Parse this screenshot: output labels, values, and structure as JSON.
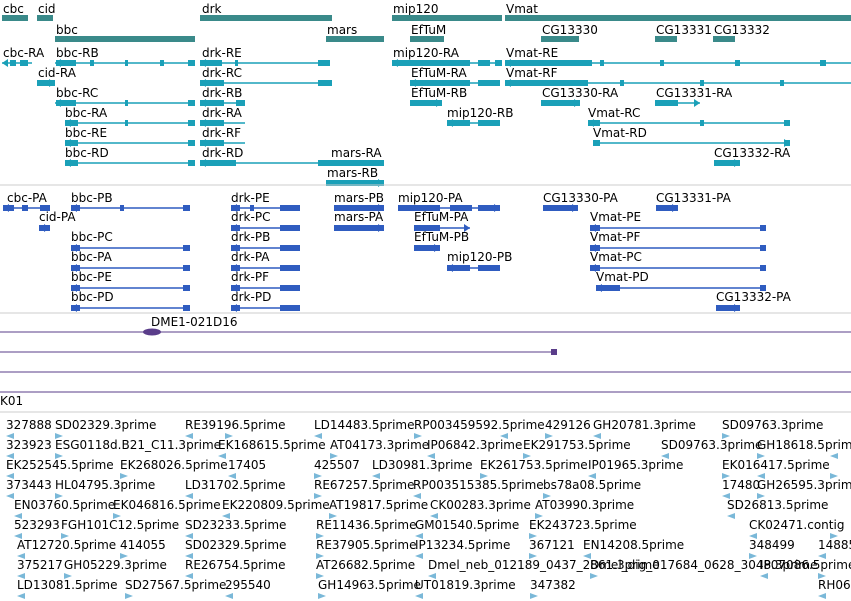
{
  "colors": {
    "gene": "#3a8a8a",
    "transcript": "#1aa0b8",
    "protein": "#2f5cc0",
    "clone": "#5a3d8a",
    "est": "#7ab8d8",
    "divider": "#cccccc"
  },
  "tracks": {
    "genes": [
      {
        "id": "cbc",
        "label": "cbc"
      },
      {
        "id": "cid",
        "label": "cid"
      },
      {
        "id": "bbc",
        "label": "bbc"
      },
      {
        "id": "drk",
        "label": "drk"
      },
      {
        "id": "mars",
        "label": "mars"
      },
      {
        "id": "mip120",
        "label": "mip120"
      },
      {
        "id": "vmat",
        "label": "Vmat"
      },
      {
        "id": "eftum",
        "label": "EfTuM"
      },
      {
        "id": "cg13330",
        "label": "CG13330"
      },
      {
        "id": "cg13331",
        "label": "CG13331"
      },
      {
        "id": "cg13332",
        "label": "CG13332"
      }
    ],
    "transcripts": [
      {
        "id": "cbc-ra",
        "label": "cbc-RA"
      },
      {
        "id": "bbc-rb",
        "label": "bbc-RB"
      },
      {
        "id": "drk-re",
        "label": "drk-RE"
      },
      {
        "id": "mip120-ra",
        "label": "mip120-RA"
      },
      {
        "id": "vmat-re",
        "label": "Vmat-RE"
      },
      {
        "id": "cid-ra",
        "label": "cid-RA"
      },
      {
        "id": "drk-rc",
        "label": "drk-RC"
      },
      {
        "id": "eftum-ra",
        "label": "EfTuM-RA"
      },
      {
        "id": "vmat-rf",
        "label": "Vmat-RF"
      },
      {
        "id": "bbc-rc",
        "label": "bbc-RC"
      },
      {
        "id": "drk-rb",
        "label": "drk-RB"
      },
      {
        "id": "eftum-rb",
        "label": "EfTuM-RB"
      },
      {
        "id": "cg13330-ra",
        "label": "CG13330-RA"
      },
      {
        "id": "cg13331-ra",
        "label": "CG13331-RA"
      },
      {
        "id": "bbc-ra",
        "label": "bbc-RA"
      },
      {
        "id": "drk-ra",
        "label": "drk-RA"
      },
      {
        "id": "mip120-rb",
        "label": "mip120-RB"
      },
      {
        "id": "vmat-rc",
        "label": "Vmat-RC"
      },
      {
        "id": "bbc-re",
        "label": "bbc-RE"
      },
      {
        "id": "drk-rf",
        "label": "drk-RF"
      },
      {
        "id": "vmat-rd",
        "label": "Vmat-RD"
      },
      {
        "id": "bbc-rd",
        "label": "bbc-RD"
      },
      {
        "id": "drk-rd",
        "label": "drk-RD"
      },
      {
        "id": "mars-ra",
        "label": "mars-RA"
      },
      {
        "id": "cg13332-ra",
        "label": "CG13332-RA"
      },
      {
        "id": "mars-rb",
        "label": "mars-RB"
      }
    ],
    "proteins": [
      {
        "id": "cbc-pa",
        "label": "cbc-PA"
      },
      {
        "id": "bbc-pb",
        "label": "bbc-PB"
      },
      {
        "id": "drk-pe",
        "label": "drk-PE"
      },
      {
        "id": "mars-pb",
        "label": "mars-PB"
      },
      {
        "id": "mip120-pa",
        "label": "mip120-PA"
      },
      {
        "id": "cg13330-pa",
        "label": "CG13330-PA"
      },
      {
        "id": "cg13331-pa",
        "label": "CG13331-PA"
      },
      {
        "id": "cid-pa",
        "label": "cid-PA"
      },
      {
        "id": "drk-pc",
        "label": "drk-PC"
      },
      {
        "id": "mars-pa",
        "label": "mars-PA"
      },
      {
        "id": "eftum-pa",
        "label": "EfTuM-PA"
      },
      {
        "id": "vmat-pe",
        "label": "Vmat-PE"
      },
      {
        "id": "bbc-pc",
        "label": "bbc-PC"
      },
      {
        "id": "drk-pb",
        "label": "drk-PB"
      },
      {
        "id": "eftum-pb",
        "label": "EfTuM-PB"
      },
      {
        "id": "vmat-pf",
        "label": "Vmat-PF"
      },
      {
        "id": "bbc-pa",
        "label": "bbc-PA"
      },
      {
        "id": "drk-pa",
        "label": "drk-PA"
      },
      {
        "id": "mip120-pb",
        "label": "mip120-PB"
      },
      {
        "id": "vmat-pc",
        "label": "Vmat-PC"
      },
      {
        "id": "bbc-pe",
        "label": "bbc-PE"
      },
      {
        "id": "drk-pf",
        "label": "drk-PF"
      },
      {
        "id": "vmat-pd",
        "label": "Vmat-PD"
      },
      {
        "id": "bbc-pd",
        "label": "bbc-PD"
      },
      {
        "id": "drk-pd",
        "label": "drk-PD"
      },
      {
        "id": "cg13332-pa",
        "label": "CG13332-PA"
      }
    ],
    "clone": {
      "label": "DME1-021D16"
    },
    "track_label": "K01",
    "ests": [
      "327888",
      "SD02329.3prime",
      "RE39196.5prime",
      "LD14483.5prime",
      "RP003459592.5prime",
      "429126",
      "GH20781.3prime",
      "SD09763.3prime",
      "323923",
      "ESG0118d.B21_C11.3prime",
      "EK168615.5prime",
      "AT04173.3prime",
      "IP06842.3prime",
      "EK291753.5prime",
      "SD09763.3prime",
      "GH18618.5prime",
      "EK252545.5prime",
      "EK268026.5prime",
      "17405",
      "425507",
      "LD30981.3prime",
      "EK261753.5prime",
      "IP01965.3prime",
      "EK016417.5prime",
      "373443",
      "HL04795.3prime",
      "LD31702.5prime",
      "RE67257.5prime",
      "RP003515385.5prime",
      "bs78a08.5prime",
      "17480",
      "GH26595.3prime",
      "EN03760.5prime",
      "EK046816.5prime",
      "EK220809.5prime",
      "AT19817.5prime",
      "CK00283.3prime",
      "AT03990.3prime",
      "SD26813.5prime",
      "523293",
      "FGH101C12.5prime",
      "SD23233.5prime",
      "RE11436.5prime",
      "GM01540.5prime",
      "EK243723.5prime",
      "CK02471.contig",
      "AT12720.5prime",
      "414055",
      "SD02329.5prime",
      "RE37905.5prime",
      "IP13234.5prime",
      "367121",
      "EN14208.5prime",
      "348499",
      "14885",
      "375217",
      "GH05229.3prime",
      "RE26754.5prime",
      "AT26682.5prime",
      "IP07086.5prime",
      "LD13081.5prime",
      "SD27567.5prime",
      "295540",
      "GH14963.5prime",
      "UT01819.3prime",
      "347382",
      "RH06",
      "Dmel_neb_012189_0437_2861.3prime",
      "Dmel_dig_017684_0628_3048.3prime"
    ]
  }
}
